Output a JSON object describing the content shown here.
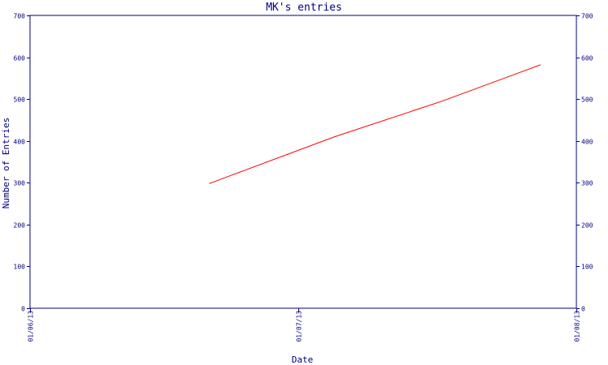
{
  "chart_data": {
    "type": "line",
    "title": "MK's entries",
    "xlabel": "Date",
    "ylabel": "Number of Entries",
    "x_tick_labels": [
      "01/06/13",
      "01/07/13",
      "01/08/13"
    ],
    "x_ticks": [
      "2013-06-01",
      "2013-07-01",
      "2013-08-01"
    ],
    "xlim": [
      "2013-06-01",
      "2013-08-01"
    ],
    "ylim": [
      0,
      700
    ],
    "y_ticks": [
      0,
      100,
      200,
      300,
      400,
      500,
      600,
      700
    ],
    "grid": false,
    "legend": "none",
    "series": [
      {
        "x": [
          "2013-06-21",
          "2013-07-05",
          "2013-07-17",
          "2013-07-28"
        ],
        "y": [
          298,
          410,
          495,
          582
        ],
        "color": "#ff0000"
      }
    ]
  },
  "colors": {
    "axis": "#000080",
    "text": "#000080",
    "title": "#000080",
    "series": "#ff0000",
    "background": "#ffffff"
  }
}
